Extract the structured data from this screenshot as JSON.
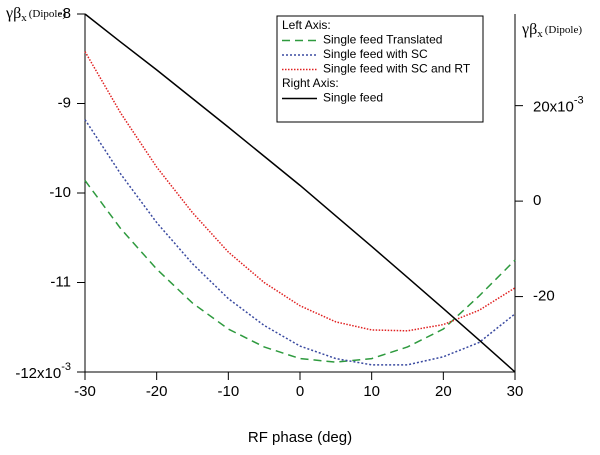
{
  "chart_data": {
    "type": "line",
    "xlabel": "RF phase (deg)",
    "ylabel": {
      "main": "γβ",
      "sub": "x",
      "unit": "(Dipole)"
    },
    "y2label": {
      "main": "γβ",
      "sub": "x",
      "unit": "(Dipole)"
    },
    "x": [
      -30,
      -25,
      -20,
      -15,
      -10,
      -5,
      0,
      5,
      10,
      15,
      20,
      25,
      30
    ],
    "xlim": [
      -30,
      30
    ],
    "xticks": [
      -30,
      -20,
      -10,
      0,
      10,
      20,
      30
    ],
    "ylim": [
      -12,
      -8
    ],
    "yticks": [
      {
        "value": -12,
        "label": "-12x10",
        "exponent": "-3"
      },
      -11,
      -10,
      -9,
      -8
    ],
    "y2lim": [
      -35.8,
      39.2
    ],
    "y2ticks": [
      -20,
      0,
      {
        "value": 20,
        "label": "20x10",
        "exponent": "-3"
      }
    ],
    "legend_headings": [
      "Left Axis:",
      "Right Axis:"
    ],
    "series": [
      {
        "name": "Single feed Translated",
        "color": "#2e9a3e",
        "dash": "8,5",
        "axis": "y",
        "values": [
          -9.86,
          -10.4,
          -10.85,
          -11.23,
          -11.52,
          -11.72,
          -11.85,
          -11.89,
          -11.85,
          -11.72,
          -11.52,
          -11.15,
          -10.75
        ]
      },
      {
        "name": "Single feed with SC",
        "color": "#3a4aa0",
        "dash": "2,2",
        "axis": "y",
        "values": [
          -9.18,
          -9.79,
          -10.33,
          -10.79,
          -11.18,
          -11.48,
          -11.71,
          -11.85,
          -11.92,
          -11.92,
          -11.83,
          -11.67,
          -11.35
        ]
      },
      {
        "name": "Single feed with SC and RT",
        "color": "#e02020",
        "dash": "1.5,1.5",
        "axis": "y",
        "values": [
          -8.42,
          -9.11,
          -9.71,
          -10.22,
          -10.66,
          -11.0,
          -11.26,
          -11.44,
          -11.53,
          -11.54,
          -11.47,
          -11.31,
          -11.06
        ]
      },
      {
        "name": "Single feed",
        "color": "#000000",
        "dash": "none",
        "axis": "y2",
        "values": [
          39.2,
          33.3,
          27.5,
          21.5,
          15.5,
          9.4,
          3.3,
          -3.1,
          -9.5,
          -16.0,
          -22.5,
          -29.1,
          -35.8
        ]
      }
    ]
  }
}
